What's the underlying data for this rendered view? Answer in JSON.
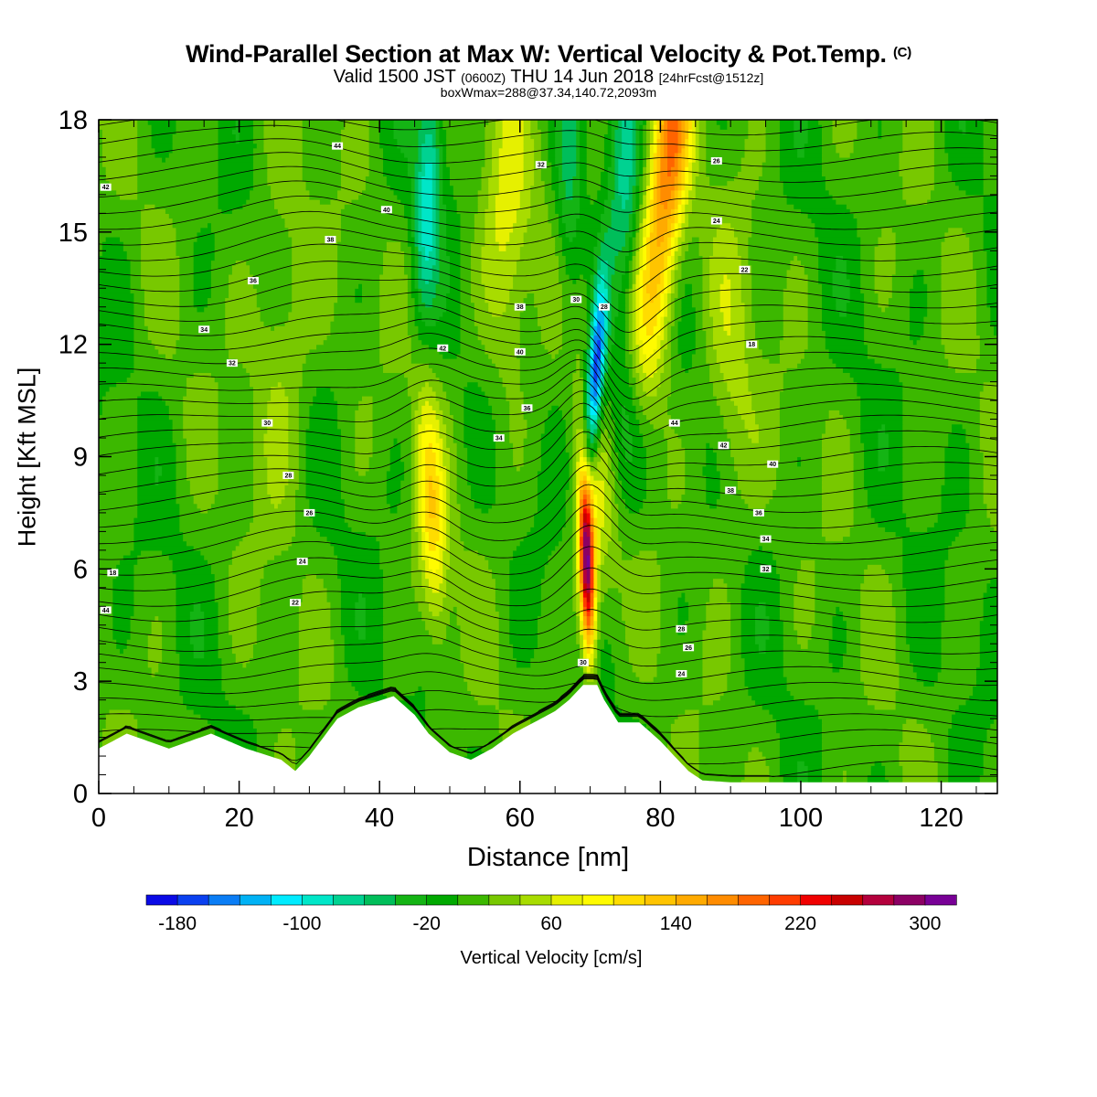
{
  "header": {
    "title": "Wind-Parallel Section at Max W: Vertical Velocity & Pot.Temp.",
    "copyright": "(C)",
    "subtitle_valid": "Valid 1500 JST",
    "subtitle_zulu": "(0600Z)",
    "subtitle_date": "THU 14 Jun 2018",
    "subtitle_fcst": "[24hrFcst@1512z]",
    "boxline": "boxWmax=288@37.34,140.72,2093m"
  },
  "colorbar": {
    "label": "Vertical Velocity [cm/s]",
    "ticks": [
      "-180",
      "-100",
      "-20",
      "60",
      "140",
      "220",
      "300"
    ],
    "levels": [
      -200,
      -180,
      -160,
      -140,
      -120,
      -100,
      -80,
      -60,
      -40,
      -20,
      0,
      20,
      40,
      60,
      80,
      100,
      120,
      140,
      160,
      180,
      200,
      220,
      240,
      260,
      280,
      300,
      320
    ],
    "colors": [
      "#0a0ae6",
      "#0a40f0",
      "#0a7df5",
      "#00b2f5",
      "#00ebff",
      "#00e6c8",
      "#00d291",
      "#00be5a",
      "#14b414",
      "#00a900",
      "#3cb800",
      "#78c800",
      "#a8dc00",
      "#e6f000",
      "#fffb00",
      "#ffdc00",
      "#ffc400",
      "#ffaa00",
      "#ff8c00",
      "#ff6400",
      "#ff3c00",
      "#f00000",
      "#c80000",
      "#b4003c",
      "#8c0064",
      "#780096"
    ]
  },
  "chart_data": {
    "type": "heatmap",
    "title": "Wind-Parallel Section at Max W: Vertical Velocity & Pot.Temp.",
    "xlabel": "Distance [nm]",
    "ylabel": "Height [Kft MSL]",
    "xlim": [
      0,
      128
    ],
    "ylim": [
      0,
      18
    ],
    "x_ticks": [
      0,
      20,
      40,
      60,
      80,
      100,
      120
    ],
    "y_ticks": [
      0,
      3,
      6,
      9,
      12,
      15,
      18
    ],
    "filled_variable": "Vertical Velocity [cm/s]",
    "contour_variable": "Potential Temperature",
    "w_features": [
      {
        "x": 70,
        "height_kft": [
          3,
          8
        ],
        "peak_w_cms": 288
      },
      {
        "x": 71.5,
        "height_kft": [
          9,
          14.5
        ],
        "min_w_cms": -180
      },
      {
        "x": 48,
        "height_kft": [
          5,
          11
        ],
        "peak_w_cms": 90
      },
      {
        "x": 47,
        "height_kft": [
          13,
          18
        ],
        "min_w_cms": -90
      },
      {
        "x": 81,
        "height_kft": [
          12,
          18
        ],
        "peak_w_cms": 160
      }
    ],
    "theta_labels": [
      "44",
      "42",
      "40",
      "38",
      "36",
      "34",
      "32",
      "30",
      "28",
      "26",
      "24",
      "22",
      "18"
    ],
    "terrain_kft": {
      "x": [
        0,
        4,
        10,
        16,
        21,
        26,
        28,
        30,
        32,
        34,
        37,
        42,
        45,
        47,
        50,
        53,
        56,
        59,
        62,
        65,
        67,
        69,
        70,
        71,
        72,
        74,
        77,
        80,
        82,
        84,
        86,
        90,
        100,
        110,
        120,
        128
      ],
      "height": [
        1.2,
        1.6,
        1.2,
        1.6,
        1.2,
        0.9,
        0.6,
        1.0,
        1.5,
        2.0,
        2.3,
        2.6,
        2.1,
        1.6,
        1.1,
        0.9,
        1.2,
        1.6,
        1.9,
        2.2,
        2.5,
        2.9,
        2.9,
        2.9,
        2.5,
        1.9,
        1.9,
        1.4,
        1.0,
        0.6,
        0.35,
        0.3,
        0.3,
        0.3,
        0.3,
        0.3
      ]
    }
  }
}
